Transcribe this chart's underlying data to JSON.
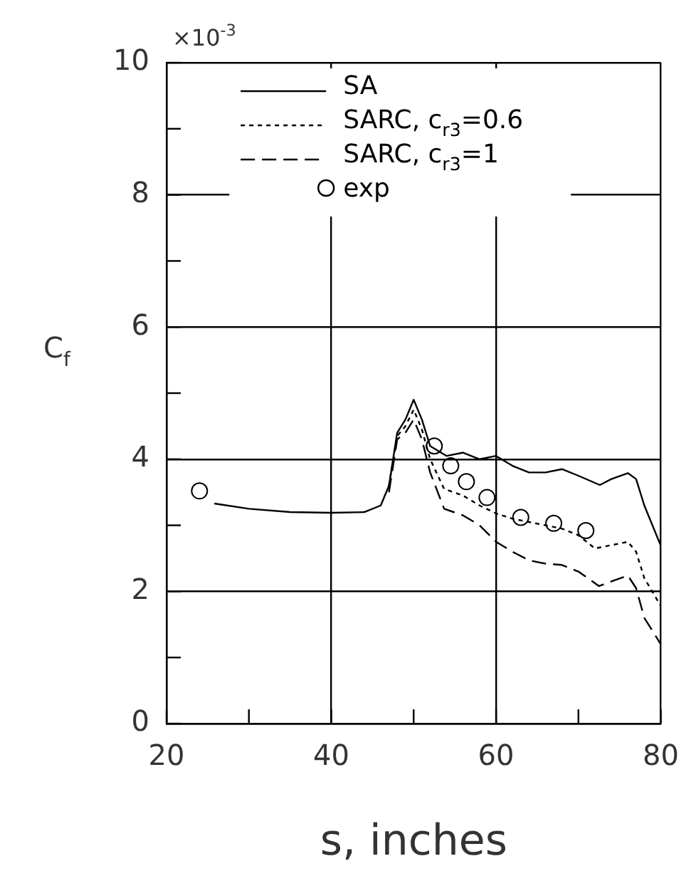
{
  "chart_data": {
    "type": "line",
    "xlabel": "s, inches",
    "ylabel": "C$_{f}$",
    "annotations": [
      "×10$^{-3}$"
    ],
    "xlim": [
      20,
      80
    ],
    "ylim": [
      0,
      10
    ],
    "xticks": [
      20,
      {
        "value": 30,
        "label": null
      },
      40,
      {
        "value": 50,
        "label": null
      },
      60,
      {
        "value": 70,
        "label": null
      },
      80
    ],
    "yticks": [
      0,
      {
        "value": 1,
        "label": null
      },
      2,
      {
        "value": 3,
        "label": null
      },
      4,
      {
        "value": 5,
        "label": null
      },
      6,
      {
        "value": 7,
        "label": null
      },
      8,
      {
        "value": 9,
        "label": null
      },
      10
    ],
    "grid": true,
    "legend": "top",
    "series": [
      {
        "name": "SA",
        "color": "#000000",
        "line_style": "solid",
        "marker": "none",
        "x": [
          25.8,
          30,
          35,
          40,
          44,
          46,
          47,
          48,
          49,
          50,
          51,
          52,
          54,
          56,
          58,
          60,
          62,
          64,
          66,
          68,
          70,
          72.6,
          74,
          76,
          77,
          78,
          80
        ],
        "values": [
          3.33,
          3.25,
          3.2,
          3.19,
          3.2,
          3.3,
          3.6,
          4.4,
          4.6,
          4.9,
          4.6,
          4.2,
          4.05,
          4.1,
          4.0,
          4.05,
          3.9,
          3.8,
          3.8,
          3.85,
          3.75,
          3.61,
          3.7,
          3.79,
          3.7,
          3.3,
          2.69
        ]
      },
      {
        "name": "SARC, c$_{r3}$=0.6",
        "color": "#000000",
        "line_style": "dotted",
        "marker": "none",
        "x": [
          47,
          48,
          49,
          50,
          51,
          52,
          53.7,
          56,
          58,
          60,
          62,
          64,
          66,
          68,
          70,
          72,
          74,
          76,
          77,
          78,
          80
        ],
        "values": [
          3.6,
          4.35,
          4.5,
          4.75,
          4.45,
          4.0,
          3.55,
          3.45,
          3.3,
          3.18,
          3.1,
          3.05,
          3.0,
          2.95,
          2.85,
          2.65,
          2.7,
          2.75,
          2.6,
          2.2,
          1.78
        ]
      },
      {
        "name": "SARC, c$_{r3}$=1",
        "color": "#000000",
        "line_style": "dashed",
        "marker": "none",
        "x": [
          47,
          48,
          49,
          50,
          51,
          52,
          53.7,
          56,
          58,
          60,
          62,
          64,
          66,
          68,
          70,
          72.5,
          74,
          76,
          77,
          78,
          80
        ],
        "values": [
          3.5,
          4.3,
          4.4,
          4.6,
          4.3,
          3.8,
          3.25,
          3.15,
          3.0,
          2.75,
          2.6,
          2.47,
          2.42,
          2.4,
          2.3,
          2.08,
          2.15,
          2.24,
          2.05,
          1.6,
          1.2
        ]
      },
      {
        "name": "exp",
        "type": "scatter",
        "color": "#000000",
        "marker": "circle",
        "x": [
          24,
          52.5,
          54.5,
          56.4,
          58.9,
          63,
          67,
          70.9
        ],
        "values": [
          3.52,
          4.2,
          3.9,
          3.66,
          3.42,
          3.12,
          3.03,
          2.92
        ]
      }
    ]
  }
}
